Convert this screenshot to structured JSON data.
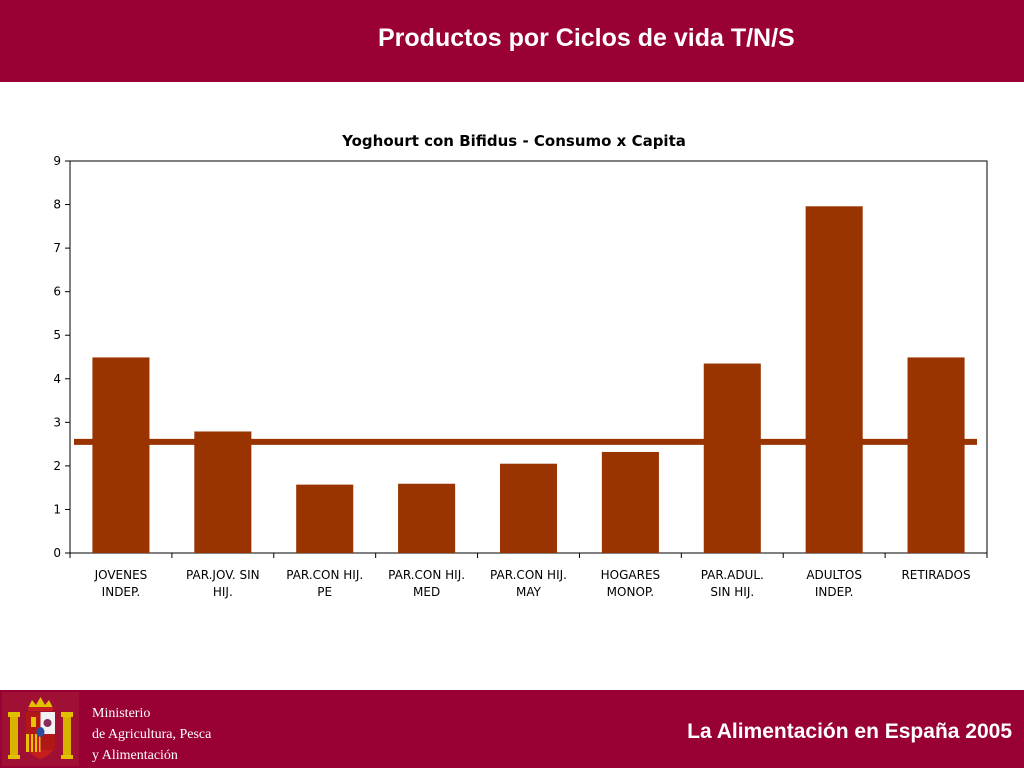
{
  "header": {
    "title": "Productos por Ciclos de vida T/N/S"
  },
  "footer": {
    "ministry_line1": "Ministerio",
    "ministry_line2": "de Agricultura, Pesca",
    "ministry_line3": "y Alimentación",
    "title": "La Alimentación en España 2005"
  },
  "colors": {
    "band": "#990033",
    "bar": "#993300",
    "avg_line": "#993300"
  },
  "chart_data": {
    "type": "bar",
    "title": "Yoghourt con Bifidus - Consumo x Capita",
    "categories": [
      [
        "JOVENES",
        "INDEP."
      ],
      [
        "PAR.JOV. SIN",
        "HIJ."
      ],
      [
        "PAR.CON HIJ.",
        "PE"
      ],
      [
        "PAR.CON HIJ.",
        "MED"
      ],
      [
        "PAR.CON HIJ.",
        "MAY"
      ],
      [
        "HOGARES",
        "MONOP."
      ],
      [
        "PAR.ADUL.",
        "SIN HIJ."
      ],
      [
        "ADULTOS",
        "INDEP."
      ],
      [
        "RETIRADOS"
      ]
    ],
    "values": [
      4.49,
      2.79,
      1.57,
      1.59,
      2.05,
      2.32,
      4.35,
      7.96,
      4.49
    ],
    "average_line": 2.55,
    "ylim": [
      0,
      9
    ],
    "yticks": [
      0,
      1,
      2,
      3,
      4,
      5,
      6,
      7,
      8,
      9
    ],
    "xlabel": "",
    "ylabel": "",
    "grid": false,
    "legend": "none"
  }
}
